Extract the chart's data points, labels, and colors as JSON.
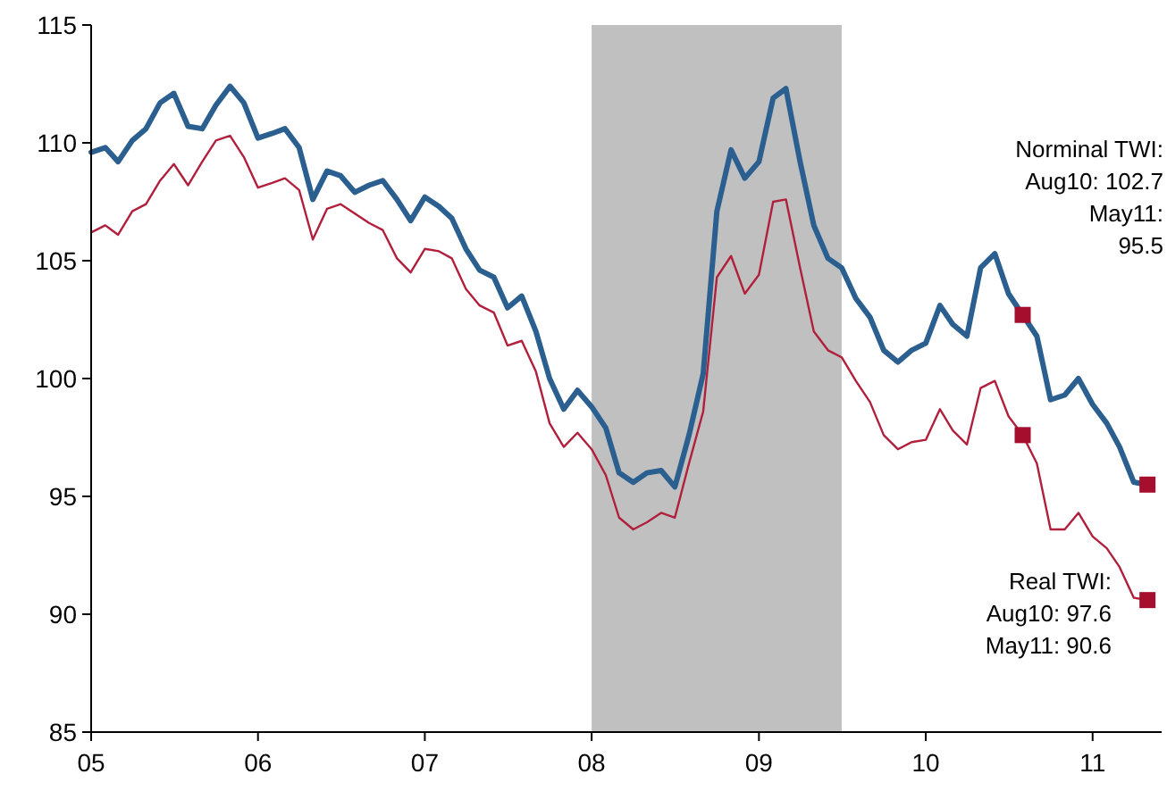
{
  "chart_data": {
    "type": "line",
    "x": [
      "2005-01",
      "2005-02",
      "2005-03",
      "2005-04",
      "2005-05",
      "2005-06",
      "2005-07",
      "2005-08",
      "2005-09",
      "2005-10",
      "2005-11",
      "2005-12",
      "2006-01",
      "2006-02",
      "2006-03",
      "2006-04",
      "2006-05",
      "2006-06",
      "2006-07",
      "2006-08",
      "2006-09",
      "2006-10",
      "2006-11",
      "2006-12",
      "2007-01",
      "2007-02",
      "2007-03",
      "2007-04",
      "2007-05",
      "2007-06",
      "2007-07",
      "2007-08",
      "2007-09",
      "2007-10",
      "2007-11",
      "2007-12",
      "2008-01",
      "2008-02",
      "2008-03",
      "2008-04",
      "2008-05",
      "2008-06",
      "2008-07",
      "2008-08",
      "2008-09",
      "2008-10",
      "2008-11",
      "2008-12",
      "2009-01",
      "2009-02",
      "2009-03",
      "2009-04",
      "2009-05",
      "2009-06",
      "2009-07",
      "2009-08",
      "2009-09",
      "2009-10",
      "2009-11",
      "2009-12",
      "2010-01",
      "2010-02",
      "2010-03",
      "2010-04",
      "2010-05",
      "2010-06",
      "2010-07",
      "2010-08",
      "2010-09",
      "2010-10",
      "2010-11",
      "2010-12",
      "2011-01",
      "2011-02",
      "2011-03",
      "2011-04",
      "2011-05"
    ],
    "series": [
      {
        "color": "#2a5f8f",
        "values": [
          109.6,
          109.8,
          109.2,
          110.1,
          110.6,
          111.7,
          112.1,
          110.7,
          110.6,
          111.6,
          112.4,
          111.7,
          110.2,
          110.4,
          110.6,
          109.8,
          107.6,
          108.8,
          108.6,
          107.9,
          108.2,
          108.4,
          107.6,
          106.7,
          107.7,
          107.3,
          106.8,
          105.5,
          104.6,
          104.3,
          103.0,
          103.5,
          102.0,
          100.0,
          98.7,
          99.5,
          98.8,
          97.9,
          96.0,
          95.6,
          96.0,
          96.1,
          95.4,
          97.6,
          100.2,
          107.1,
          109.7,
          108.5,
          109.2,
          111.9,
          112.3,
          109.2,
          106.5,
          105.1,
          104.7,
          103.4,
          102.6,
          101.2,
          100.7,
          101.2,
          101.5,
          103.1,
          102.3,
          101.8,
          104.7,
          105.3,
          103.6,
          102.7,
          101.8,
          99.1,
          99.3,
          100.0,
          98.9,
          98.1,
          97.1,
          95.6,
          95.5
        ]
      },
      {
        "color": "#b0203c",
        "values": [
          106.2,
          106.5,
          106.1,
          107.1,
          107.4,
          108.4,
          109.1,
          108.2,
          109.2,
          110.1,
          110.3,
          109.4,
          108.1,
          108.3,
          108.5,
          108.0,
          105.9,
          107.2,
          107.4,
          107.0,
          106.6,
          106.3,
          105.1,
          104.5,
          105.5,
          105.4,
          105.1,
          103.8,
          103.1,
          102.8,
          101.4,
          101.6,
          100.3,
          98.1,
          97.1,
          97.7,
          97.0,
          95.9,
          94.1,
          93.6,
          93.9,
          94.3,
          94.1,
          96.4,
          98.6,
          104.3,
          105.2,
          103.6,
          104.4,
          107.5,
          107.6,
          104.7,
          102.0,
          101.2,
          100.9,
          99.9,
          99.0,
          97.6,
          97.0,
          97.3,
          97.4,
          98.7,
          97.8,
          97.2,
          99.6,
          99.9,
          98.4,
          97.6,
          96.4,
          93.6,
          93.6,
          94.3,
          93.3,
          92.8,
          92.0,
          90.7,
          90.6
        ]
      },
      {
        "type": "scatter",
        "marker": "square",
        "color": "#a50f2d",
        "x": [
          "2010-08",
          "2011-05"
        ],
        "values": [
          102.7,
          95.5
        ]
      },
      {
        "type": "scatter",
        "marker": "square",
        "color": "#a50f2d",
        "x": [
          "2010-08",
          "2011-05"
        ],
        "values": [
          97.6,
          90.6
        ]
      }
    ],
    "xlim": [
      "2005-01",
      "2011-06"
    ],
    "xticks": [
      {
        "value": "2005-01",
        "label": "05"
      },
      {
        "value": "2006-01",
        "label": "06"
      },
      {
        "value": "2007-01",
        "label": "07"
      },
      {
        "value": "2008-01",
        "label": "08"
      },
      {
        "value": "2009-01",
        "label": "09"
      },
      {
        "value": "2010-01",
        "label": "10"
      },
      {
        "value": "2011-01",
        "label": "11"
      }
    ],
    "ylim": [
      85,
      115
    ],
    "yticks": [
      85,
      90,
      95,
      100,
      105,
      110,
      115
    ],
    "bands": [
      {
        "axis": "x",
        "from": "2008-01",
        "to": "2009-07",
        "color": "#c0c0c0"
      }
    ],
    "annotations": [
      "Norminal TWI:\nAug10: 102.7\nMay11:\n95.5",
      "Real TWI:\nAug10: 97.6\nMay11: 90.6"
    ],
    "grid": false
  }
}
